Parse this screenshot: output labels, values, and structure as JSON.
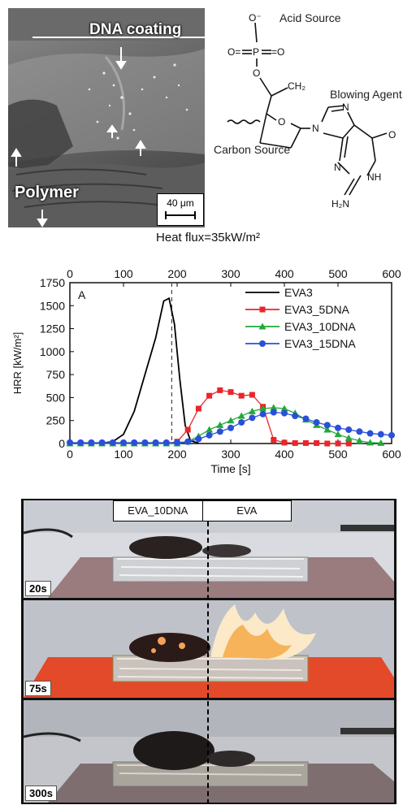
{
  "sem": {
    "coating_label": "DNA coating",
    "polymer_label": "Polymer",
    "scale_bar": "40 μm"
  },
  "structure": {
    "acid_label": "Acid Source",
    "blowing_label": "Blowing Agent",
    "carbon_label": "Carbon Source",
    "atoms": {
      "o_minus": "O⁻",
      "o_eq_left": "O=",
      "p": "P",
      "o_eq_right": "=O",
      "o_link": "O",
      "ch2": "CH₂",
      "o_ring": "O",
      "n9": "N",
      "n7": "N",
      "o6": "O",
      "nh": "NH",
      "n3": "N",
      "h2n": "H₂N"
    }
  },
  "chart_data": {
    "type": "line",
    "title": "Heat flux=35kW/m²",
    "panel_label": "A",
    "xlabel": "Time [s]",
    "ylabel": "HRR [kW/m²]",
    "xlim": [
      0,
      600
    ],
    "ylim": [
      0,
      1750
    ],
    "xticks": [
      0,
      100,
      200,
      300,
      400,
      500,
      600
    ],
    "yticks": [
      0,
      250,
      500,
      750,
      1000,
      1250,
      1500,
      1750
    ],
    "top_axis_ticks": [
      0,
      100,
      200,
      300,
      400,
      500,
      600
    ],
    "reference_line_x": 190,
    "legend_position": "top-right",
    "series": [
      {
        "name": "EVA3",
        "color": "#000000",
        "marker": "none",
        "x": [
          0,
          60,
          80,
          100,
          120,
          140,
          160,
          175,
          185,
          195,
          205,
          215,
          225,
          240
        ],
        "y": [
          0,
          5,
          20,
          100,
          350,
          750,
          1150,
          1550,
          1580,
          1300,
          700,
          200,
          30,
          5
        ]
      },
      {
        "name": "EVA3_5DNA",
        "color": "#e8262b",
        "marker": "square",
        "x": [
          0,
          20,
          40,
          60,
          80,
          100,
          120,
          140,
          160,
          180,
          200,
          220,
          240,
          260,
          280,
          300,
          320,
          340,
          360,
          380,
          400,
          420,
          440,
          460,
          480,
          500,
          520
        ],
        "y": [
          0,
          0,
          0,
          0,
          0,
          0,
          0,
          0,
          0,
          0,
          20,
          150,
          380,
          520,
          580,
          560,
          520,
          530,
          400,
          40,
          10,
          5,
          5,
          5,
          0,
          0,
          0
        ]
      },
      {
        "name": "EVA3_10DNA",
        "color": "#22a83a",
        "marker": "triangle",
        "x": [
          0,
          20,
          40,
          60,
          80,
          100,
          120,
          140,
          160,
          180,
          200,
          220,
          240,
          260,
          280,
          300,
          320,
          340,
          360,
          380,
          400,
          420,
          440,
          460,
          480,
          500,
          520,
          540,
          560,
          580
        ],
        "y": [
          0,
          0,
          0,
          0,
          0,
          0,
          0,
          0,
          0,
          0,
          0,
          20,
          80,
          150,
          200,
          250,
          300,
          350,
          380,
          390,
          380,
          330,
          260,
          200,
          150,
          100,
          60,
          30,
          10,
          5
        ]
      },
      {
        "name": "EVA3_15DNA",
        "color": "#2a4fd8",
        "marker": "circle",
        "x": [
          0,
          20,
          40,
          60,
          80,
          100,
          120,
          140,
          160,
          180,
          200,
          220,
          240,
          260,
          280,
          300,
          320,
          340,
          360,
          380,
          400,
          420,
          440,
          460,
          480,
          500,
          520,
          540,
          560,
          580,
          600
        ],
        "y": [
          10,
          10,
          10,
          10,
          10,
          10,
          10,
          10,
          10,
          10,
          10,
          20,
          50,
          90,
          130,
          170,
          230,
          280,
          320,
          340,
          330,
          300,
          270,
          230,
          200,
          170,
          150,
          130,
          110,
          100,
          90
        ]
      }
    ]
  },
  "photos": {
    "header_left": "EVA_10DNA",
    "header_right": "EVA",
    "frames": [
      {
        "time": "20s"
      },
      {
        "time": "75s"
      },
      {
        "time": "300s"
      }
    ]
  }
}
